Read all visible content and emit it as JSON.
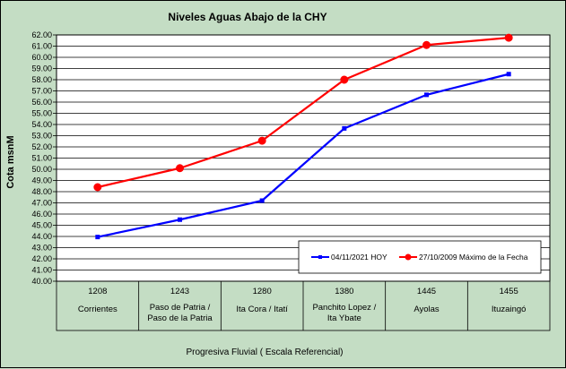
{
  "chart_data": {
    "type": "line",
    "title": "Niveles Aguas Abajo de la CHY",
    "ylabel": "Cota msnM",
    "xlabel": "Progresiva Fluvial ( Escala Referencial)",
    "ylim": [
      40.0,
      62.0
    ],
    "ytick_step": 1.0,
    "categories": [
      {
        "km": "1208",
        "name": [
          "Corrientes"
        ]
      },
      {
        "km": "1243",
        "name": [
          "Paso de Patria /",
          "Paso de la Patria"
        ]
      },
      {
        "km": "1280",
        "name": [
          "Ita Cora / Itatí"
        ]
      },
      {
        "km": "1380",
        "name": [
          "Panchito Lopez /",
          "Ita Ybate"
        ]
      },
      {
        "km": "1445",
        "name": [
          "Ayolas"
        ]
      },
      {
        "km": "1455",
        "name": [
          "Ituzaingó"
        ]
      }
    ],
    "series": [
      {
        "name": "04/11/2021 HOY",
        "color": "#0000ff",
        "marker": "square",
        "values": [
          43.95,
          45.5,
          47.2,
          53.65,
          56.65,
          58.5
        ]
      },
      {
        "name": "27/10/2009 Máximo de la Fecha",
        "color": "#ff0000",
        "marker": "circle",
        "values": [
          48.4,
          50.1,
          52.55,
          58.0,
          61.1,
          61.75
        ]
      }
    ],
    "grid": true,
    "legend_position": "bottom-right"
  }
}
